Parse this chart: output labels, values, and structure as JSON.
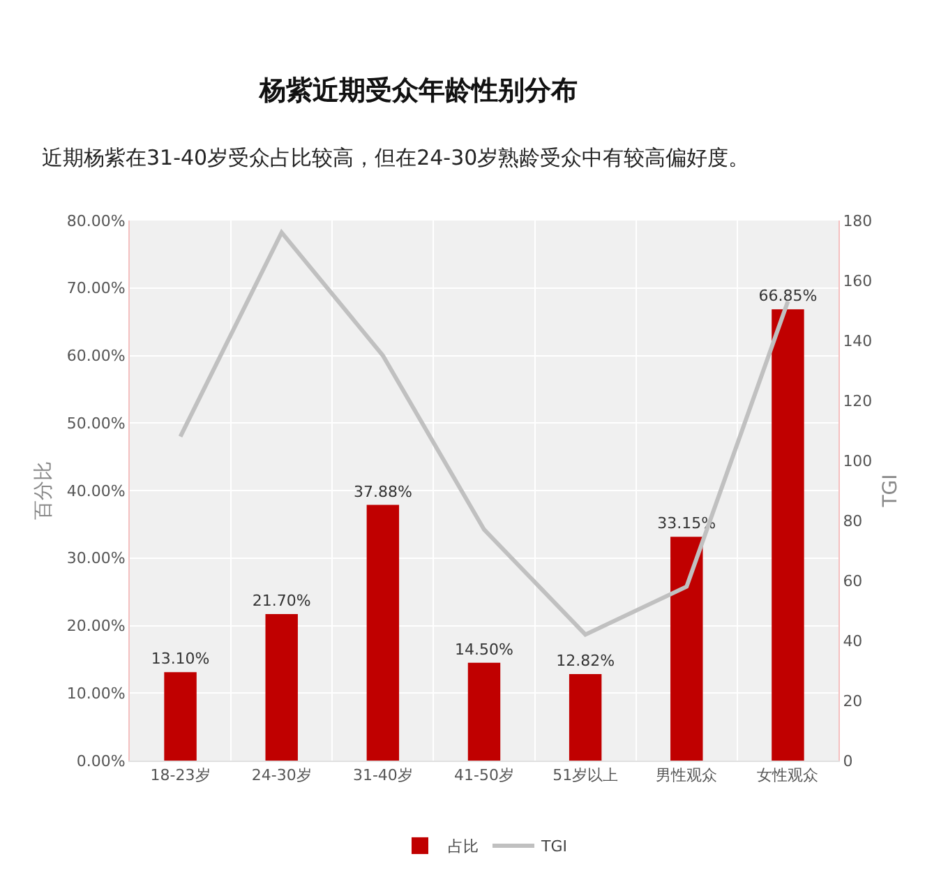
{
  "chart_data": {
    "type": "bar",
    "title": "杨紫近期受众年龄性别分布",
    "subtitle": "近期杨紫在31-40岁受众占比较高，但在24-30岁熟龄受众中有较高偏好度。",
    "ylabel": "百分比",
    "y2label": "TGI",
    "categories": [
      "18-23岁",
      "24-30岁",
      "31-40岁",
      "41-50岁",
      "51岁以上",
      "男性观众",
      "女性观众"
    ],
    "series": [
      {
        "name": "占比",
        "color": "#c00000",
        "values": [
          13.1,
          21.7,
          37.88,
          14.5,
          12.82,
          33.15,
          66.85
        ],
        "value_labels": [
          "13.10%",
          "21.70%",
          "37.88%",
          "14.50%",
          "12.82%",
          "33.15%",
          "66.85%"
        ]
      },
      {
        "name": "TGI",
        "type": "line",
        "axis": "y2",
        "color": "#c0c0c0",
        "values": [
          108,
          176,
          135,
          77,
          42,
          58,
          153
        ]
      }
    ],
    "ylim": [
      0,
      80
    ],
    "yticks": [
      {
        "value": 0,
        "label": "0.00%"
      },
      {
        "value": 10,
        "label": "10.00%"
      },
      {
        "value": 20,
        "label": "20.00%"
      },
      {
        "value": 30,
        "label": "30.00%"
      },
      {
        "value": 40,
        "label": "40.00%"
      },
      {
        "value": 50,
        "label": "50.00%"
      },
      {
        "value": 60,
        "label": "60.00%"
      },
      {
        "value": 70,
        "label": "70.00%"
      },
      {
        "value": 80,
        "label": "80.00%"
      }
    ],
    "y2lim": [
      0,
      180
    ],
    "y2ticks": [
      0,
      20,
      40,
      60,
      80,
      100,
      120,
      140,
      160,
      180
    ],
    "grid": true,
    "legend": "bottom",
    "marker": "none",
    "line_style": "solid"
  }
}
